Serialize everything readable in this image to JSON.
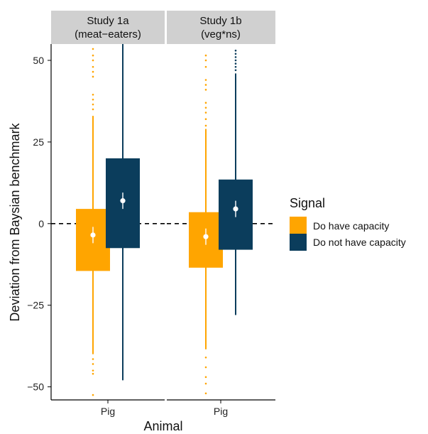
{
  "chart_data": {
    "type": "boxplot",
    "title": "",
    "xlabel": "Animal",
    "ylabel": "Deviation from Baysian benchmark",
    "ylim": [
      -54,
      55
    ],
    "yticks": [
      50,
      25,
      0,
      -25,
      -50
    ],
    "ytick_labels": [
      "50",
      "25",
      "0",
      "−25",
      "−50"
    ],
    "reference_line": 0,
    "grid": false,
    "legend": {
      "title": "Signal",
      "placement": "right",
      "entries": [
        {
          "label": "Do have capacity",
          "color": "#FFA500"
        },
        {
          "label": "Do not have capacity",
          "color": "#0B3D5C"
        }
      ]
    },
    "panels": [
      {
        "title_line1": "Study 1a",
        "title_line2": "(meat−eaters)",
        "category": "Pig",
        "series": [
          {
            "name": "Do have capacity",
            "color": "#FFA500",
            "whisker_low": -40,
            "q1": -14.5,
            "median": -3.5,
            "q3": 4.5,
            "whisker_high": 33,
            "mean": -3.5,
            "ci": [
              -6,
              -1
            ],
            "outliers": [
              -52.5,
              -46,
              -45,
              -43,
              -41.5,
              35,
              36.5,
              38,
              39.5,
              45,
              46.5,
              48,
              50,
              51.5,
              53.5
            ]
          },
          {
            "name": "Do not have capacity",
            "color": "#0B3D5C",
            "whisker_low": -48,
            "q1": -7.5,
            "median": 7,
            "q3": 20,
            "whisker_high": 55,
            "mean": 7,
            "ci": [
              4.5,
              9.5
            ],
            "outliers": []
          }
        ]
      },
      {
        "title_line1": "Study 1b",
        "title_line2": "(veg*ns)",
        "category": "Pig",
        "series": [
          {
            "name": "Do have capacity",
            "color": "#FFA500",
            "whisker_low": -38.5,
            "q1": -13.5,
            "median": -4,
            "q3": 3.5,
            "whisker_high": 29,
            "mean": -4,
            "ci": [
              -6.5,
              -1.5
            ],
            "outliers": [
              -52,
              -49,
              -47,
              -44,
              -41,
              30,
              32,
              34,
              35.5,
              37,
              41,
              42.5,
              44,
              48,
              50,
              51.5
            ]
          },
          {
            "name": "Do not have capacity",
            "color": "#0B3D5C",
            "whisker_low": -28,
            "q1": -8,
            "median": 4.5,
            "q3": 13.5,
            "whisker_high": 46,
            "mean": 4.5,
            "ci": [
              2,
              7
            ],
            "outliers": [
              47,
              48,
              49,
              50,
              51,
              52,
              53
            ]
          }
        ]
      }
    ]
  }
}
